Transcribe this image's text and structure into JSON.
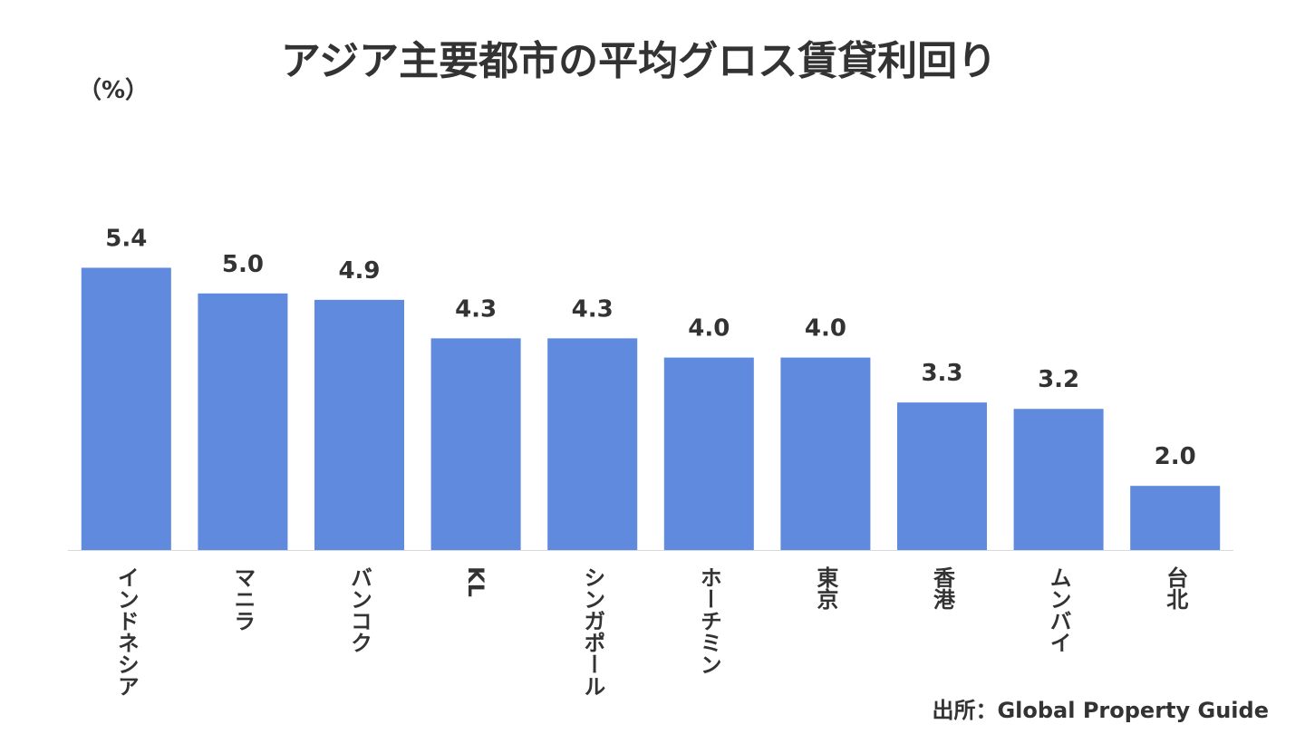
{
  "chart_data": {
    "type": "bar",
    "title": "アジア主要都市の平均グロス賃貸利回り",
    "y_label": "（%）",
    "categories": [
      "インドネシア",
      "マニラ",
      "バンコク",
      "KL",
      "シンガポール",
      "ホーチミン",
      "東京",
      "香港",
      "ムンバイ",
      "台北"
    ],
    "values": [
      5.4,
      5.0,
      4.9,
      4.3,
      4.3,
      4.0,
      4.0,
      3.3,
      3.2,
      2.0
    ],
    "value_labels": [
      "5.4",
      "5.0",
      "4.9",
      "4.3",
      "4.3",
      "4.0",
      "4.0",
      "3.3",
      "3.2",
      "2.0"
    ],
    "color": "#5f8ade",
    "ylim": [
      1,
      6
    ],
    "source": "出所：Global Property Guide"
  }
}
